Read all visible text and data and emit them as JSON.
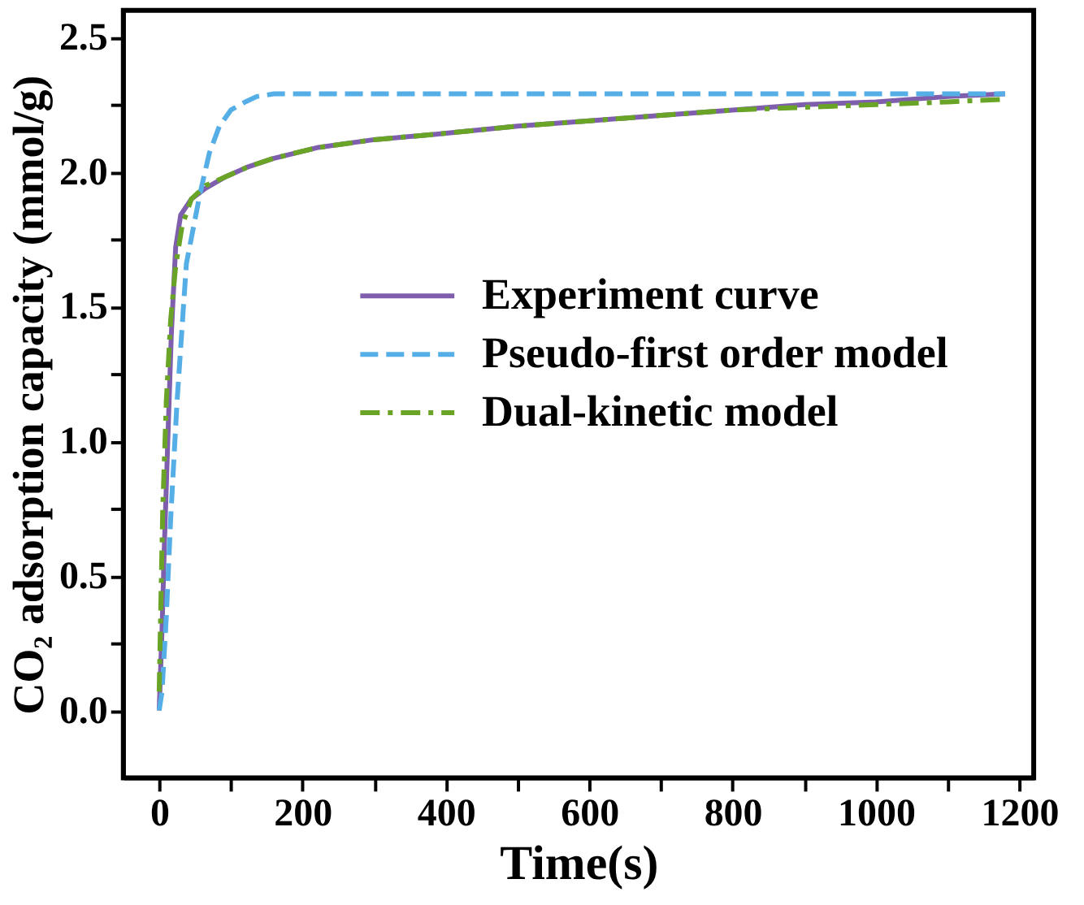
{
  "chart_data": {
    "type": "line",
    "xlabel": "Time(s)",
    "ylabel": "CO₂ adsorption capacity (mmol/g)",
    "xlim": [
      -50,
      1220
    ],
    "ylim": [
      -0.25,
      2.6
    ],
    "xticks": [
      0,
      {
        "value": 100,
        "label": null
      },
      200,
      {
        "value": 300,
        "label": null
      },
      400,
      {
        "value": 500,
        "label": null
      },
      600,
      {
        "value": 700,
        "label": null
      },
      800,
      {
        "value": 900,
        "label": null
      },
      1000,
      {
        "value": 1100,
        "label": null
      },
      1200
    ],
    "yticks": [
      {
        "value": 0,
        "label": "0.0"
      },
      {
        "value": 0.25,
        "label": null
      },
      {
        "value": 0.5,
        "label": "0.5"
      },
      {
        "value": 0.75,
        "label": null
      },
      {
        "value": 1,
        "label": "1.0"
      },
      {
        "value": 1.25,
        "label": null
      },
      {
        "value": 1.5,
        "label": "1.5"
      },
      {
        "value": 1.75,
        "label": null
      },
      {
        "value": 2,
        "label": "2.0"
      },
      {
        "value": 2.25,
        "label": null
      },
      {
        "value": 2.5,
        "label": "2.5"
      }
    ],
    "grid": false,
    "legend": "right",
    "marker": "none",
    "series": [
      {
        "name": "Experiment curve",
        "color": "#7f5fad",
        "line_style": "solid",
        "x": [
          0,
          4,
          7,
          12,
          17,
          23,
          30,
          45,
          65,
          91,
          125,
          159,
          220,
          300,
          386,
          500,
          600,
          700,
          800,
          900,
          1000,
          1100,
          1180
        ],
        "values": [
          0,
          0.3,
          0.59,
          1.0,
          1.4,
          1.72,
          1.84,
          1.9,
          1.94,
          1.98,
          2.02,
          2.05,
          2.09,
          2.12,
          2.14,
          2.17,
          2.19,
          2.21,
          2.23,
          2.25,
          2.26,
          2.28,
          2.29
        ]
      },
      {
        "name": "Pseudo-first order model",
        "color": "#56aee6",
        "line_style": "dashed",
        "x": [
          0,
          4,
          10,
          16,
          25,
          38,
          57,
          70,
          84,
          100,
          120,
          136,
          160,
          200,
          400,
          600,
          800,
          1000,
          1180
        ],
        "values": [
          0,
          0.07,
          0.35,
          0.71,
          1.15,
          1.66,
          1.92,
          2.07,
          2.17,
          2.23,
          2.26,
          2.28,
          2.29,
          2.29,
          2.29,
          2.29,
          2.29,
          2.29,
          2.29
        ]
      },
      {
        "name": "Dual-kinetic model",
        "color": "#6aa426",
        "line_style": "dashdot",
        "x": [
          0,
          2,
          5,
          10,
          16,
          23,
          32,
          45,
          65,
          91,
          125,
          159,
          220,
          300,
          386,
          500,
          600,
          700,
          800,
          900,
          1000,
          1100,
          1180
        ],
        "values": [
          0.07,
          0.35,
          0.75,
          1.15,
          1.45,
          1.65,
          1.8,
          1.9,
          1.95,
          1.98,
          2.02,
          2.05,
          2.09,
          2.12,
          2.14,
          2.17,
          2.19,
          2.21,
          2.23,
          2.24,
          2.25,
          2.26,
          2.27
        ]
      }
    ]
  }
}
